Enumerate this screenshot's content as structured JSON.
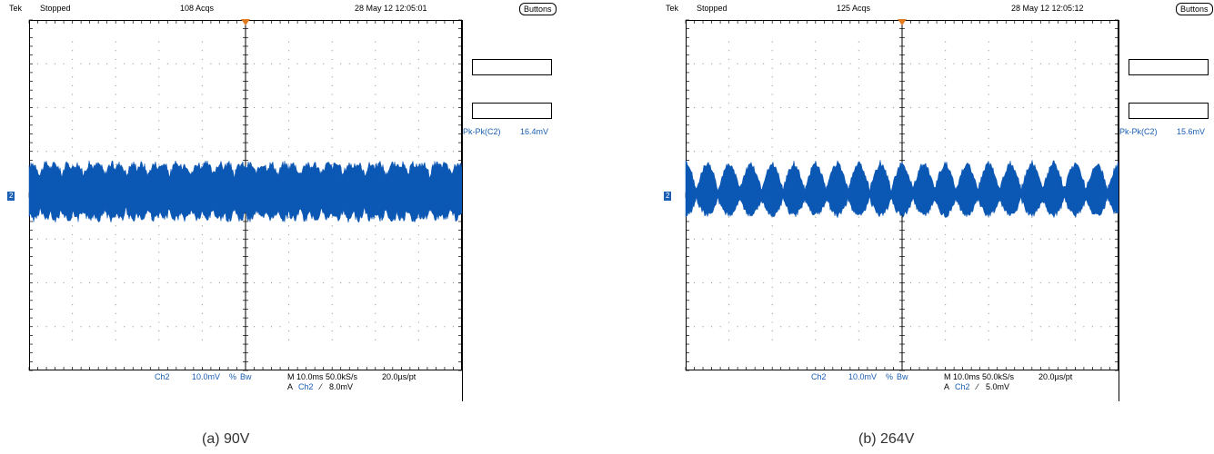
{
  "panels": [
    {
      "id": "a",
      "header": {
        "brand": "Tek",
        "status": "Stopped",
        "acqs": "108 Acqs",
        "datetime": "28 May 12 12:05:01"
      },
      "buttons_label": "Buttons",
      "measurement": {
        "label": "Pk-Pk(C2)",
        "value": "16.4mV"
      },
      "channel_marker": "2",
      "footer": {
        "channel": "Ch2",
        "scale": "10.0mV",
        "bw": "Bw",
        "timebase": "M 10.0ms 50.0kS/s",
        "resolution": "20.0µs/pt",
        "trigger_prefix": "A",
        "trigger_channel": "Ch2",
        "trigger_level": "8.0mV"
      },
      "caption": "(a) 90V"
    },
    {
      "id": "b",
      "header": {
        "brand": "Tek",
        "status": "Stopped",
        "acqs": "125 Acqs",
        "datetime": "28 May 12 12:05:12"
      },
      "buttons_label": "Buttons",
      "measurement": {
        "label": "Pk-Pk(C2)",
        "value": "15.6mV"
      },
      "channel_marker": "2",
      "footer": {
        "channel": "Ch2",
        "scale": "10.0mV",
        "bw": "Bw",
        "timebase": "M 10.0ms 50.0kS/s",
        "resolution": "20.0µs/pt",
        "trigger_prefix": "A",
        "trigger_channel": "Ch2",
        "trigger_level": "5.0mV"
      },
      "caption": "(b) 264V"
    }
  ],
  "colors": {
    "trace": "#0b57b4",
    "grid": "#999999",
    "trigger_marker": "#e07a1f",
    "text_blue": "#1a5fb4"
  }
}
